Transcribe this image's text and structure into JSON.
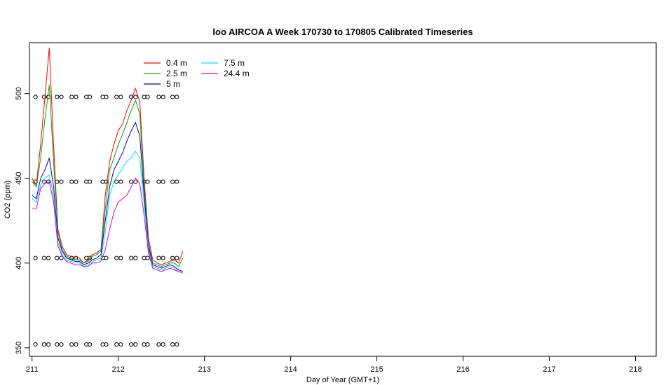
{
  "chart_data": {
    "type": "line",
    "title": "loo AIRCOA A  Week 170730 to 170805  Calibrated Timeseries",
    "xlabel": "Day of Year (GMT+1)",
    "ylabel": "CO2 (ppm)",
    "xlim": [
      210.97,
      218.24
    ],
    "ylim": [
      345,
      530
    ],
    "xticks": [
      211,
      212,
      213,
      214,
      215,
      216,
      217,
      218
    ],
    "yticks": [
      350,
      400,
      450,
      500
    ],
    "legend_position": "top-left",
    "grid": false,
    "x": [
      211.0,
      211.05,
      211.1,
      211.15,
      211.2,
      211.25,
      211.3,
      211.35,
      211.4,
      211.45,
      211.5,
      211.55,
      211.6,
      211.65,
      211.7,
      211.75,
      211.8,
      211.85,
      211.9,
      211.95,
      212.0,
      212.05,
      212.1,
      212.15,
      212.2,
      212.25,
      212.3,
      212.35,
      212.4,
      212.45,
      212.5,
      212.55,
      212.6,
      212.65,
      212.7,
      212.75
    ],
    "series": [
      {
        "name": "0.4 m",
        "color": "#ff0000",
        "values": [
          450,
          446,
          470,
          498,
          527,
          470,
          420,
          410,
          405,
          404,
          403,
          403,
          400,
          402,
          405,
          406,
          408,
          440,
          460,
          470,
          478,
          482,
          490,
          496,
          503,
          495,
          450,
          415,
          402,
          400,
          399,
          400,
          401,
          402,
          400,
          407
        ]
      },
      {
        "name": "2.5 m",
        "color": "#00aa00",
        "values": [
          448,
          445,
          462,
          485,
          505,
          460,
          418,
          408,
          404,
          403,
          402,
          402,
          400,
          401,
          404,
          405,
          407,
          432,
          455,
          462,
          470,
          476,
          483,
          490,
          496,
          488,
          445,
          412,
          400,
          399,
          398,
          399,
          400,
          400,
          398,
          403
        ]
      },
      {
        "name": "5 m",
        "color": "#0000cc",
        "values": [
          440,
          438,
          450,
          455,
          462,
          445,
          415,
          407,
          403,
          402,
          401,
          401,
          399,
          400,
          402,
          403,
          405,
          425,
          445,
          455,
          460,
          465,
          472,
          478,
          483,
          475,
          440,
          410,
          399,
          398,
          397,
          398,
          399,
          398,
          396,
          395
        ]
      },
      {
        "name": "7.5 m",
        "color": "#00e5ee",
        "values": [
          438,
          436,
          446,
          450,
          452,
          440,
          412,
          405,
          402,
          401,
          400,
          400,
          398,
          399,
          401,
          402,
          403,
          418,
          440,
          448,
          452,
          456,
          460,
          462,
          466,
          462,
          435,
          408,
          398,
          397,
          396,
          397,
          398,
          397,
          395,
          394
        ]
      },
      {
        "name": "24.4 m",
        "color": "#dd00dd",
        "values": [
          432,
          432,
          444,
          447,
          448,
          436,
          410,
          404,
          401,
          400,
          399,
          399,
          398,
          398,
          400,
          400,
          401,
          408,
          420,
          430,
          436,
          438,
          440,
          445,
          450,
          447,
          428,
          406,
          397,
          396,
          395,
          396,
          397,
          396,
          395,
          394
        ]
      },
      {
        "name": "",
        "marker": "open-circle",
        "color": "#000000",
        "x": [
          211.04,
          211.14,
          211.19,
          211.29,
          211.34,
          211.46,
          211.51,
          211.63,
          211.67,
          211.82,
          211.86,
          211.98,
          212.03,
          212.15,
          212.2,
          212.3,
          212.34,
          212.47,
          212.52,
          212.63,
          212.68
        ],
        "levels": [
          352,
          403,
          448,
          498
        ]
      }
    ]
  }
}
